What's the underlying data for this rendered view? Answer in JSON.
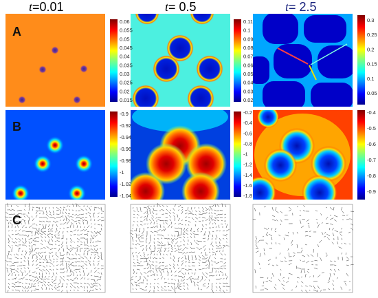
{
  "figure": {
    "columns": [
      {
        "t_symbol": "t",
        "t_eq": "=0.01",
        "color": "#000000"
      },
      {
        "t_symbol": "t",
        "t_eq": "= 0.5",
        "color": "#000000"
      },
      {
        "t_symbol": "t",
        "t_eq": "= 2.5",
        "color": "#1a237e"
      }
    ],
    "rows": [
      {
        "label": "A",
        "kind": "heatmap"
      },
      {
        "label": "B",
        "kind": "heatmap"
      },
      {
        "label": "C",
        "kind": "quiver"
      }
    ],
    "colorbars": [
      {
        "ticks": [
          "0.06",
          "0.055",
          "0.05",
          "0.045",
          "0.04",
          "0.035",
          "0.03",
          "0.025",
          "0.02",
          "0.015"
        ]
      },
      {
        "ticks": [
          "0.11",
          "0.1",
          "0.09",
          "0.08",
          "0.07",
          "0.06",
          "0.05",
          "0.04",
          "0.03",
          "0.02"
        ]
      },
      {
        "ticks": [
          "0.3",
          "0.25",
          "0.2",
          "0.15",
          "0.1",
          "0.05"
        ]
      },
      {
        "ticks": [
          "-0.9",
          "-0.92",
          "-0.94",
          "-0.96",
          "-0.98",
          "-1",
          "-1.02",
          "-1.04"
        ]
      },
      {
        "ticks": [
          "-0.2",
          "-0.4",
          "-0.6",
          "-0.8",
          "-1",
          "-1.2",
          "-1.4",
          "-1.6",
          "-1.8"
        ]
      },
      {
        "ticks": [
          "-0.4",
          "-0.5",
          "-0.6",
          "-0.7",
          "-0.8",
          "-0.9"
        ]
      }
    ],
    "colormap": "jet"
  }
}
